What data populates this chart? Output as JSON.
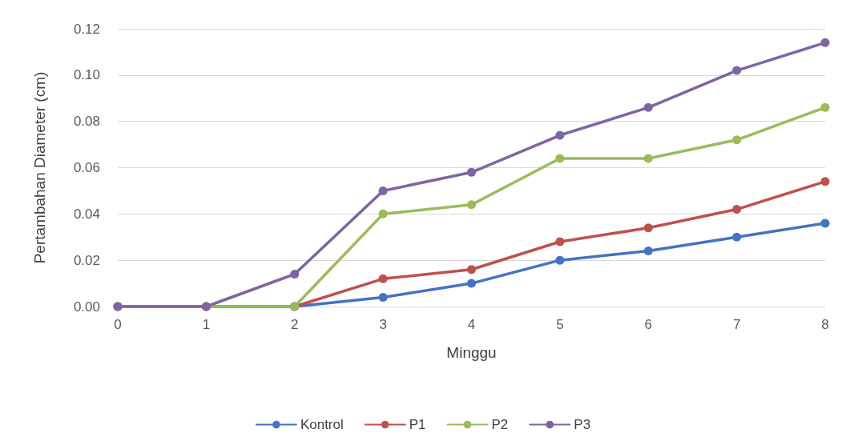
{
  "chart_data": {
    "type": "line",
    "xlabel": "Minggu",
    "ylabel": "Pertambahan Diameter (cm)",
    "categories": [
      "0",
      "1",
      "2",
      "3",
      "4",
      "5",
      "6",
      "7",
      "8"
    ],
    "series": [
      {
        "name": "Kontrol",
        "color": "#4472c4",
        "values": [
          0,
          0,
          0,
          0.004,
          0.01,
          0.02,
          0.024,
          0.03,
          0.036
        ]
      },
      {
        "name": "P1",
        "color": "#c0504d",
        "values": [
          0,
          0,
          0,
          0.012,
          0.016,
          0.028,
          0.034,
          0.042,
          0.054
        ]
      },
      {
        "name": "P2",
        "color": "#9bbb59",
        "values": [
          0,
          0,
          0,
          0.04,
          0.044,
          0.064,
          0.064,
          0.072,
          0.086
        ]
      },
      {
        "name": "P3",
        "color": "#8064a2",
        "values": [
          0,
          0,
          0.014,
          0.05,
          0.058,
          0.074,
          0.086,
          0.102,
          0.114
        ]
      }
    ],
    "ylim": [
      0,
      0.12
    ],
    "yticks": [
      {
        "value": 0,
        "label": "0.00"
      },
      {
        "value": 0.02,
        "label": "0.02"
      },
      {
        "value": 0.04,
        "label": "0.04"
      },
      {
        "value": 0.06,
        "label": "0.06"
      },
      {
        "value": 0.08,
        "label": "0.08"
      },
      {
        "value": 0.1,
        "label": "0.10"
      },
      {
        "value": 0.12,
        "label": "0.12"
      }
    ],
    "grid": "y",
    "legend": "bottom",
    "marker": "circle",
    "line_style": "solid"
  }
}
